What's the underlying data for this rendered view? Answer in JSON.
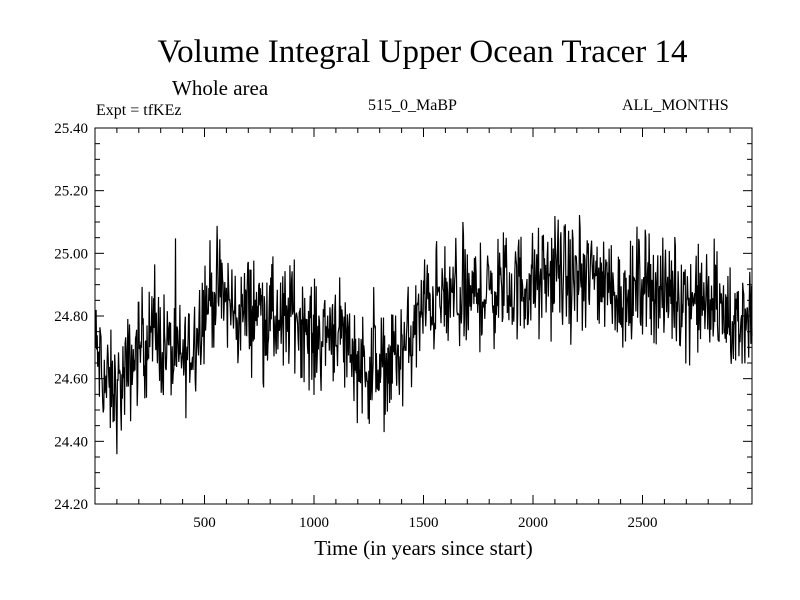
{
  "chart_data": {
    "type": "line",
    "title": "Volume Integral Upper Ocean Tracer 14",
    "subtitle": "Whole area",
    "annotations": {
      "experiment": "Expt = tfKEz",
      "run": "515_0_MaBP",
      "period": "ALL_MONTHS"
    },
    "xlabel": "Time (in years since start)",
    "ylabel": "",
    "xlim": [
      0,
      3000
    ],
    "ylim": [
      24.2,
      25.4
    ],
    "x_ticks": [
      500,
      1000,
      1500,
      2000,
      2500
    ],
    "x_tick_labels": [
      "500",
      "1000",
      "1500",
      "2000",
      "2500"
    ],
    "y_ticks": [
      24.2,
      24.4,
      24.6,
      24.8,
      25.0,
      25.2,
      25.4
    ],
    "y_tick_labels": [
      "24.20",
      "24.40",
      "24.60",
      "24.80",
      "25.00",
      "25.20",
      "25.40"
    ],
    "grid": false,
    "series": [
      {
        "color": "#000000",
        "x": [
          0,
          50,
          100,
          150,
          200,
          250,
          300,
          350,
          400,
          450,
          500,
          550,
          600,
          650,
          700,
          750,
          800,
          850,
          900,
          950,
          1000,
          1050,
          1100,
          1150,
          1200,
          1250,
          1300,
          1350,
          1400,
          1450,
          1500,
          1550,
          1600,
          1650,
          1700,
          1750,
          1800,
          1850,
          1900,
          1950,
          2000,
          2050,
          2100,
          2150,
          2200,
          2250,
          2300,
          2350,
          2400,
          2450,
          2500,
          2550,
          2600,
          2650,
          2700,
          2750,
          2800,
          2850,
          2900,
          2950,
          3000
        ],
        "values": [
          24.7,
          24.58,
          24.55,
          24.62,
          24.7,
          24.75,
          24.72,
          24.68,
          24.66,
          24.72,
          24.84,
          24.88,
          24.85,
          24.8,
          24.82,
          24.83,
          24.8,
          24.76,
          24.82,
          24.78,
          24.72,
          24.75,
          24.78,
          24.72,
          24.66,
          24.63,
          24.62,
          24.66,
          24.68,
          24.74,
          24.82,
          24.86,
          24.84,
          24.87,
          24.84,
          24.88,
          24.86,
          24.9,
          24.88,
          24.9,
          24.9,
          24.9,
          24.95,
          24.92,
          24.9,
          24.92,
          24.93,
          24.9,
          24.87,
          24.85,
          24.93,
          24.9,
          24.86,
          24.88,
          24.86,
          24.85,
          24.84,
          24.82,
          24.78,
          24.77,
          24.84
        ]
      }
    ]
  }
}
